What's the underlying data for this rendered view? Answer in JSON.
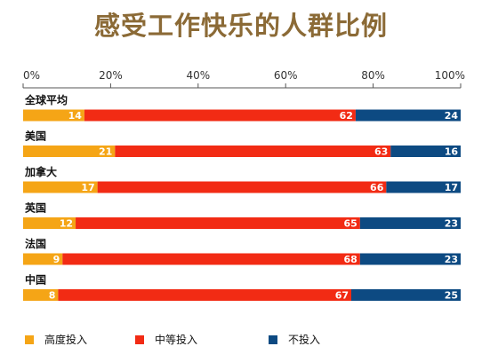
{
  "title": "感受工作快乐的人群比例",
  "colors": {
    "title": "#8b6a36",
    "high": "#f5a516",
    "mid": "#f22b14",
    "none": "#0d4a82",
    "axis": "#555555",
    "text": "#111111"
  },
  "legend": [
    {
      "label": "高度投入",
      "color": "#f5a516"
    },
    {
      "label": "中等投入",
      "color": "#f22b14"
    },
    {
      "label": "不投入",
      "color": "#0d4a82"
    }
  ],
  "chart_data": {
    "type": "bar",
    "orientation": "horizontal",
    "stacked": true,
    "title": "感受工作快乐的人群比例",
    "xlim": [
      0,
      100
    ],
    "x_ticks": [
      "0%",
      "20%",
      "40%",
      "60%",
      "80%",
      "100%"
    ],
    "categories": [
      "全球平均",
      "美国",
      "加拿大",
      "英国",
      "法国",
      "中国"
    ],
    "series": [
      {
        "name": "高度投入",
        "values": [
          14,
          21,
          17,
          12,
          9,
          8
        ]
      },
      {
        "name": "中等投入",
        "values": [
          62,
          63,
          66,
          65,
          68,
          67
        ]
      },
      {
        "name": "不投入",
        "values": [
          24,
          16,
          17,
          23,
          23,
          25
        ]
      }
    ],
    "legend_position": "bottom"
  }
}
